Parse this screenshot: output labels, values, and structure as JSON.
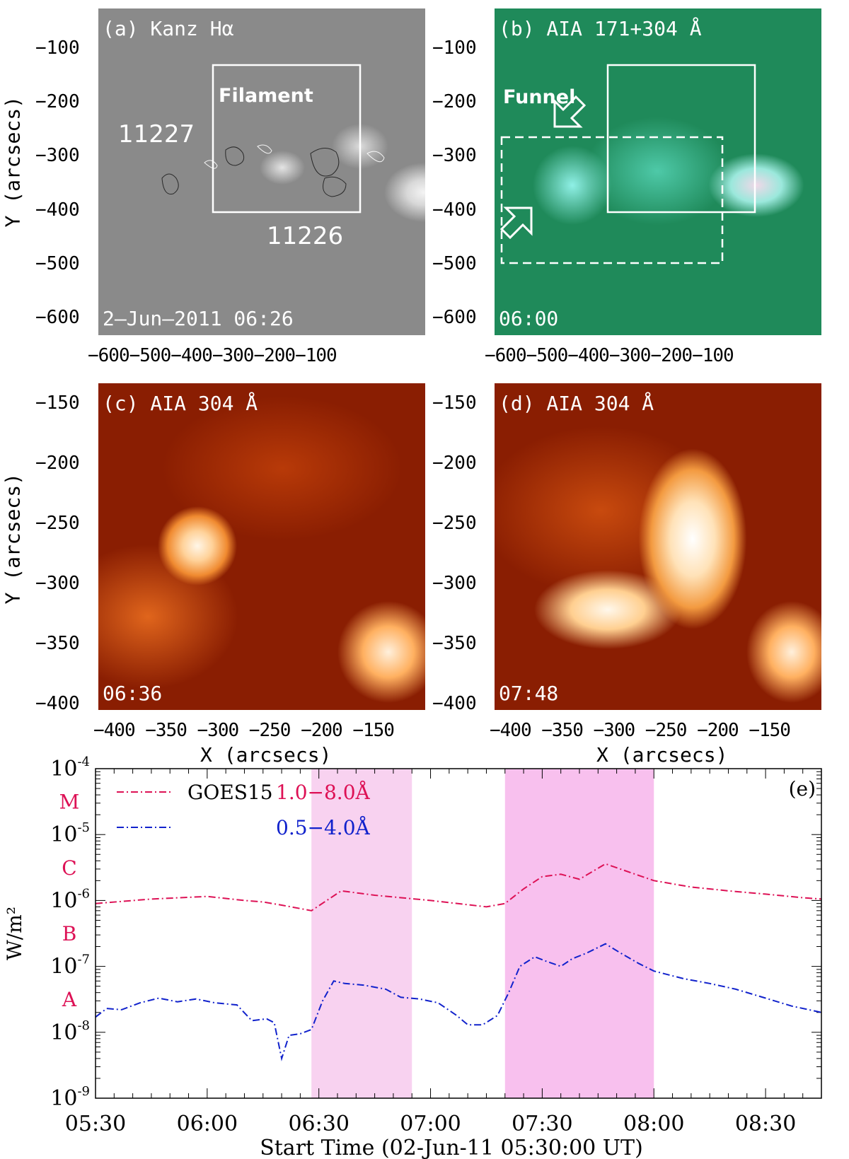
{
  "panel_a": {
    "label": "(a) Kanz Hα",
    "filament": "Filament",
    "ar_left": "11227",
    "ar_right": "11226",
    "timestamp": "2–Jun–2011 06:26",
    "yticks": [
      "−100",
      "−200",
      "−300",
      "−400",
      "−500",
      "−600"
    ],
    "xticks": "−600−500−400−300−200−100"
  },
  "panel_b": {
    "label": "(b) AIA 171+304 Å",
    "funnel": "Funnel",
    "timestamp": "06:00",
    "yticks": [
      "−100",
      "−200",
      "−300",
      "−400",
      "−500",
      "−600"
    ],
    "xticks": "−600−500−400−300−200−100"
  },
  "panel_c": {
    "label": "(c) AIA 304 Å",
    "timestamp": "06:36",
    "yticks": [
      "−150",
      "−200",
      "−250",
      "−300",
      "−350",
      "−400"
    ],
    "xticks": "−400 −350 −300 −250 −200 −150"
  },
  "panel_d": {
    "label": "(d) AIA 304 Å",
    "timestamp": "07:48",
    "yticks": [
      "−150",
      "−200",
      "−250",
      "−300",
      "−350",
      "−400"
    ],
    "xticks": "−400 −350 −300 −250 −200 −150"
  },
  "y_axis_label": "Y (arcsecs)",
  "x_axis_label": "X (arcsecs)",
  "chart_data": {
    "type": "line",
    "panel_label": "(e)",
    "xlabel": "Start Time (02-Jun-11 05:30:00 UT)",
    "ylabel": "W/m²",
    "yscale": "log",
    "ylim": [
      1e-09,
      0.0001
    ],
    "xlim": [
      "05:30",
      "08:45"
    ],
    "xticks": [
      "05:30",
      "06:00",
      "06:30",
      "07:00",
      "07:30",
      "08:00",
      "08:30"
    ],
    "yticks": [
      "10-9",
      "10-8",
      "10-7",
      "10-6",
      "10-5",
      "10-4"
    ],
    "flare_classes": [
      "A",
      "B",
      "C",
      "M"
    ],
    "legend_instrument": "GOES15",
    "legend_placement": "top-left",
    "shaded_intervals": [
      [
        "06:28",
        "06:55"
      ],
      [
        "07:20",
        "08:00"
      ]
    ],
    "series": [
      {
        "name": "1.0−8.0Å",
        "color": "#dd1155",
        "x": [
          "05:30",
          "05:45",
          "06:00",
          "06:10",
          "06:15",
          "06:20",
          "06:28",
          "06:36",
          "06:45",
          "07:00",
          "07:15",
          "07:20",
          "07:25",
          "07:30",
          "07:35",
          "07:40",
          "07:47",
          "07:55",
          "08:00",
          "08:10",
          "08:20",
          "08:30",
          "08:40",
          "08:45"
        ],
        "values": [
          9e-07,
          1.05e-06,
          1.15e-06,
          1e-06,
          9.5e-07,
          8.5e-07,
          7e-07,
          1.4e-06,
          1.2e-06,
          1e-06,
          8e-07,
          9e-07,
          1.5e-06,
          2.3e-06,
          2.5e-06,
          2.1e-06,
          3.6e-06,
          2.5e-06,
          2e-06,
          1.6e-06,
          1.4e-06,
          1.25e-06,
          1.1e-06,
          1.05e-06
        ]
      },
      {
        "name": "0.5−4.0Å",
        "color": "#1122cc",
        "x": [
          "05:30",
          "05:33",
          "05:37",
          "05:42",
          "05:47",
          "05:52",
          "05:57",
          "06:02",
          "06:08",
          "06:12",
          "06:16",
          "06:18",
          "06:20",
          "06:22",
          "06:25",
          "06:28",
          "06:31",
          "06:34",
          "06:37",
          "06:42",
          "06:48",
          "06:52",
          "06:57",
          "07:02",
          "07:07",
          "07:10",
          "07:14",
          "07:18",
          "07:21",
          "07:24",
          "07:28",
          "07:31",
          "07:35",
          "07:38",
          "07:42",
          "07:47",
          "07:51",
          "07:56",
          "08:00",
          "08:08",
          "08:15",
          "08:22",
          "08:30",
          "08:37",
          "08:45"
        ],
        "values": [
          1.7e-08,
          2.3e-08,
          2.2e-08,
          2.8e-08,
          3.3e-08,
          2.9e-08,
          3.2e-08,
          2.8e-08,
          2.6e-08,
          1.5e-08,
          1.6e-08,
          1.4e-08,
          4e-09,
          9e-09,
          9.5e-09,
          1.1e-08,
          3e-08,
          6e-08,
          5.5e-08,
          5.2e-08,
          4.5e-08,
          3.4e-08,
          3.2e-08,
          2.8e-08,
          1.8e-08,
          1.3e-08,
          1.3e-08,
          1.8e-08,
          4e-08,
          1e-07,
          1.4e-07,
          1.2e-07,
          1e-07,
          1.3e-07,
          1.6e-07,
          2.2e-07,
          1.6e-07,
          1.1e-07,
          8.5e-08,
          6.5e-08,
          5.5e-08,
          4.5e-08,
          3.3e-08,
          2.5e-08,
          2e-08
        ]
      }
    ]
  }
}
